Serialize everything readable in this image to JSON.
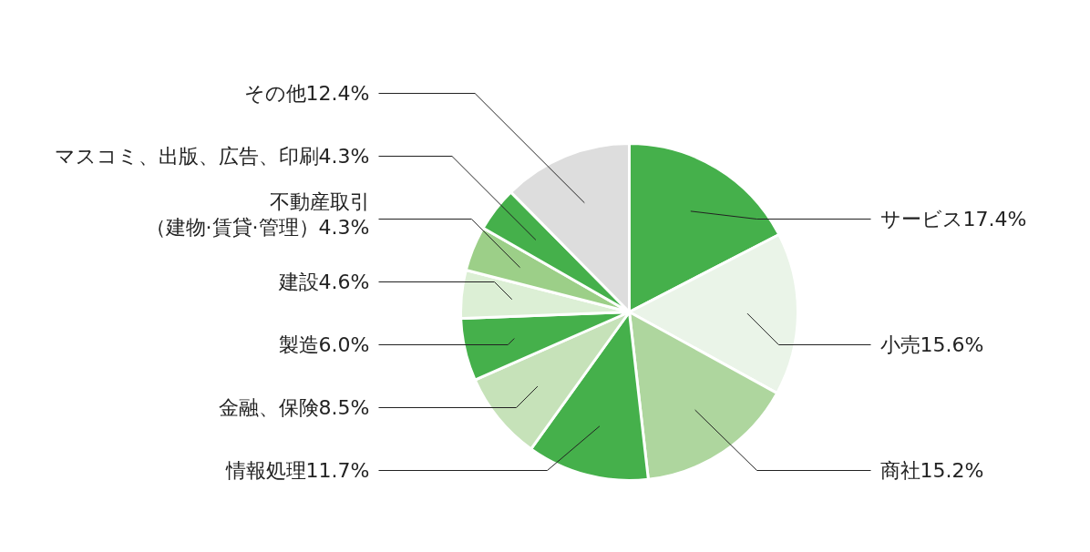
{
  "chart_data": {
    "type": "pie",
    "categories": [
      "サービス",
      "小売",
      "商社",
      "情報処理",
      "金融、保険",
      "製造",
      "建設",
      "不動産取引（建物·賃貸·管理）",
      "マスコミ、出版、広告、印刷",
      "その他"
    ],
    "values": [
      17.4,
      15.6,
      15.2,
      11.7,
      8.5,
      6.0,
      4.6,
      4.3,
      4.3,
      12.4
    ],
    "value_labels": [
      "17.4%",
      "15.6%",
      "15.2%",
      "11.7%",
      "8.5%",
      "6.0%",
      "4.6%",
      "4.3%",
      "4.3%",
      "12.4%"
    ],
    "colors": [
      "#45b04b",
      "#eaf4e8",
      "#aed69e",
      "#45b04b",
      "#c6e2b9",
      "#45b04b",
      "#dcefd5",
      "#9ccf88",
      "#45b04b",
      "#dddddd"
    ]
  }
}
